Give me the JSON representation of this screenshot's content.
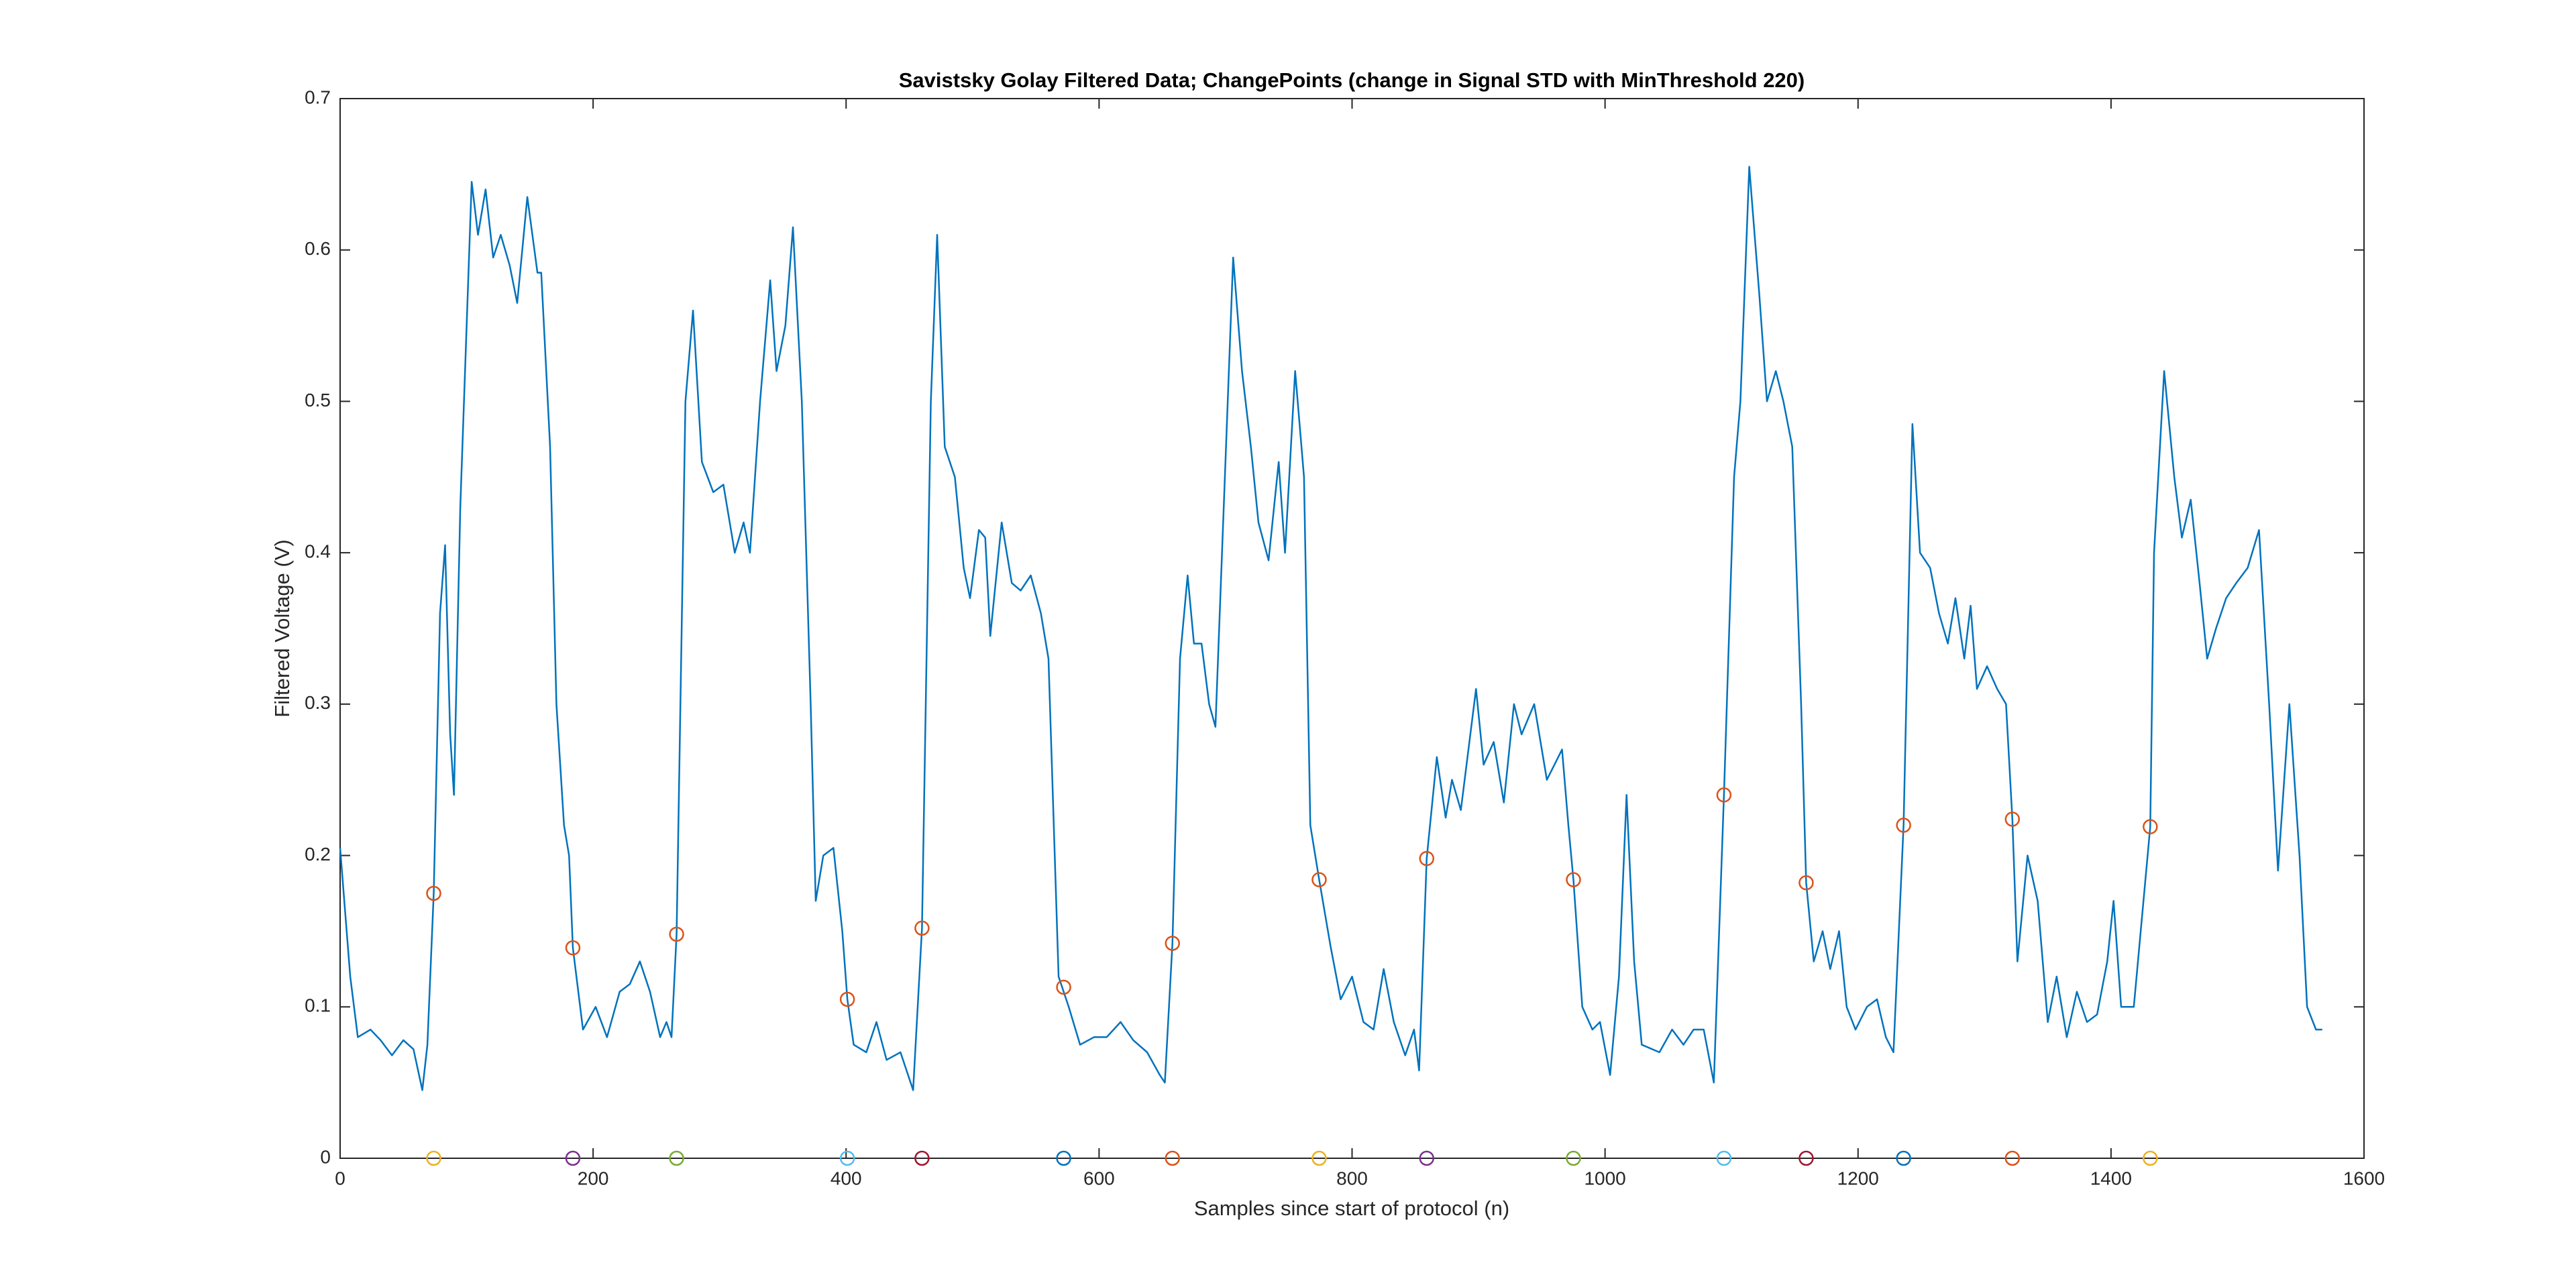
{
  "chart_data": {
    "type": "line",
    "title": "Savistsky Golay Filtered Data; ChangePoints (change in Signal STD with MinThreshold 220)",
    "xlabel": "Samples since start of protocol (n)",
    "ylabel": "Filtered Voltage (V)",
    "xlim": [
      0,
      1600
    ],
    "ylim": [
      0,
      0.7
    ],
    "xticks": [
      0,
      200,
      400,
      600,
      800,
      1000,
      1200,
      1400,
      1600
    ],
    "yticks": [
      0,
      0.1,
      0.2,
      0.3,
      0.4,
      0.5,
      0.6,
      0.7
    ],
    "grid": false,
    "series": [
      {
        "type": "line",
        "color": "#0072BD",
        "x": [
          0,
          8,
          14,
          24,
          32,
          41,
          50,
          58,
          65,
          69,
          74,
          79,
          83,
          87,
          90,
          95,
          104,
          109,
          115,
          121,
          127,
          134,
          140,
          148,
          156,
          159,
          166,
          171,
          177,
          181,
          184,
          192,
          202,
          211,
          221,
          229,
          237,
          245,
          253,
          258,
          262,
          266,
          273,
          279,
          286,
          295,
          303,
          312,
          319,
          324,
          332,
          340,
          345,
          352,
          358,
          365,
          372,
          376,
          382,
          390,
          397,
          401,
          406,
          416,
          424,
          432,
          443,
          453,
          460,
          467,
          472,
          478,
          486,
          493,
          498,
          505,
          510,
          514,
          523,
          531,
          538,
          546,
          554,
          560,
          568,
          576,
          585,
          596,
          606,
          617,
          627,
          638,
          648,
          652,
          658,
          664,
          670,
          675,
          681,
          687,
          692,
          699,
          706,
          713,
          720,
          726,
          734,
          742,
          747,
          755,
          762,
          767,
          774,
          783,
          791,
          800,
          809,
          817,
          825,
          833,
          842,
          849,
          853,
          859,
          867,
          874,
          879,
          886,
          898,
          904,
          912,
          920,
          928,
          934,
          944,
          954,
          966,
          971,
          975,
          982,
          990,
          996,
          1004,
          1011,
          1017,
          1023,
          1029,
          1043,
          1053,
          1062,
          1070,
          1078,
          1086,
          1094,
          1102,
          1107,
          1114,
          1122,
          1128,
          1135,
          1141,
          1148,
          1155,
          1159,
          1165,
          1172,
          1178,
          1185,
          1191,
          1198,
          1207,
          1215,
          1222,
          1228,
          1236,
          1243,
          1249,
          1257,
          1264,
          1271,
          1277,
          1284,
          1289,
          1294,
          1302,
          1310,
          1317,
          1322,
          1326,
          1334,
          1342,
          1350,
          1357,
          1365,
          1373,
          1381,
          1389,
          1397,
          1402,
          1408,
          1418,
          1431,
          1434,
          1442,
          1450,
          1456,
          1463,
          1470,
          1476,
          1483,
          1491,
          1499,
          1508,
          1517,
          1525,
          1532,
          1541,
          1549,
          1555,
          1562,
          1567
        ],
        "values": [
          0.205,
          0.12,
          0.08,
          0.085,
          0.078,
          0.068,
          0.078,
          0.072,
          0.045,
          0.075,
          0.175,
          0.36,
          0.405,
          0.28,
          0.24,
          0.43,
          0.645,
          0.61,
          0.64,
          0.595,
          0.61,
          0.59,
          0.565,
          0.635,
          0.585,
          0.585,
          0.47,
          0.3,
          0.22,
          0.2,
          0.139,
          0.085,
          0.1,
          0.08,
          0.11,
          0.115,
          0.13,
          0.11,
          0.08,
          0.09,
          0.08,
          0.148,
          0.5,
          0.56,
          0.46,
          0.44,
          0.445,
          0.4,
          0.42,
          0.4,
          0.5,
          0.58,
          0.52,
          0.55,
          0.615,
          0.5,
          0.3,
          0.17,
          0.2,
          0.205,
          0.15,
          0.105,
          0.075,
          0.07,
          0.09,
          0.065,
          0.07,
          0.045,
          0.152,
          0.5,
          0.61,
          0.47,
          0.45,
          0.39,
          0.37,
          0.415,
          0.41,
          0.345,
          0.42,
          0.38,
          0.375,
          0.385,
          0.36,
          0.33,
          0.12,
          0.1,
          0.075,
          0.08,
          0.08,
          0.09,
          0.078,
          0.07,
          0.055,
          0.05,
          0.142,
          0.33,
          0.385,
          0.34,
          0.34,
          0.3,
          0.285,
          0.44,
          0.595,
          0.52,
          0.47,
          0.42,
          0.395,
          0.46,
          0.4,
          0.52,
          0.45,
          0.22,
          0.184,
          0.14,
          0.105,
          0.12,
          0.09,
          0.085,
          0.125,
          0.09,
          0.068,
          0.085,
          0.058,
          0.198,
          0.265,
          0.225,
          0.25,
          0.23,
          0.31,
          0.26,
          0.275,
          0.235,
          0.3,
          0.28,
          0.3,
          0.25,
          0.27,
          0.22,
          0.184,
          0.1,
          0.085,
          0.09,
          0.055,
          0.12,
          0.24,
          0.13,
          0.075,
          0.07,
          0.085,
          0.075,
          0.085,
          0.085,
          0.05,
          0.24,
          0.45,
          0.5,
          0.655,
          0.57,
          0.5,
          0.52,
          0.5,
          0.47,
          0.3,
          0.182,
          0.13,
          0.15,
          0.125,
          0.15,
          0.1,
          0.085,
          0.1,
          0.105,
          0.08,
          0.07,
          0.22,
          0.485,
          0.4,
          0.39,
          0.36,
          0.34,
          0.37,
          0.33,
          0.365,
          0.31,
          0.325,
          0.31,
          0.3,
          0.224,
          0.13,
          0.2,
          0.17,
          0.09,
          0.12,
          0.08,
          0.11,
          0.09,
          0.095,
          0.13,
          0.17,
          0.1,
          0.1,
          0.219,
          0.4,
          0.52,
          0.45,
          0.41,
          0.435,
          0.38,
          0.33,
          0.35,
          0.37,
          0.38,
          0.39,
          0.415,
          0.3,
          0.19,
          0.3,
          0.2,
          0.1,
          0.085,
          0.085
        ]
      },
      {
        "type": "scatter",
        "marker": "circle",
        "color": "#D95319",
        "x": [
          74,
          184,
          266,
          401,
          460,
          572,
          658,
          774,
          859,
          975,
          1094,
          1159,
          1236,
          1322,
          1431
        ],
        "values": [
          0.175,
          0.139,
          0.148,
          0.105,
          0.152,
          0.113,
          0.142,
          0.184,
          0.198,
          0.184,
          0.24,
          0.182,
          0.22,
          0.224,
          0.219
        ]
      },
      {
        "type": "scatter",
        "marker": "circle",
        "colors": [
          "#EDB120",
          "#7E2F8E",
          "#77AC30",
          "#4DBEEE",
          "#A2142F",
          "#0072BD",
          "#D95319",
          "#EDB120",
          "#7E2F8E",
          "#77AC30",
          "#4DBEEE",
          "#A2142F",
          "#0072BD",
          "#D95319",
          "#EDB120"
        ],
        "x": [
          74,
          184,
          266,
          401,
          460,
          572,
          658,
          774,
          859,
          975,
          1094,
          1159,
          1236,
          1322,
          1431
        ],
        "values": [
          0,
          0,
          0,
          0,
          0,
          0,
          0,
          0,
          0,
          0,
          0,
          0,
          0,
          0,
          0
        ]
      }
    ]
  }
}
